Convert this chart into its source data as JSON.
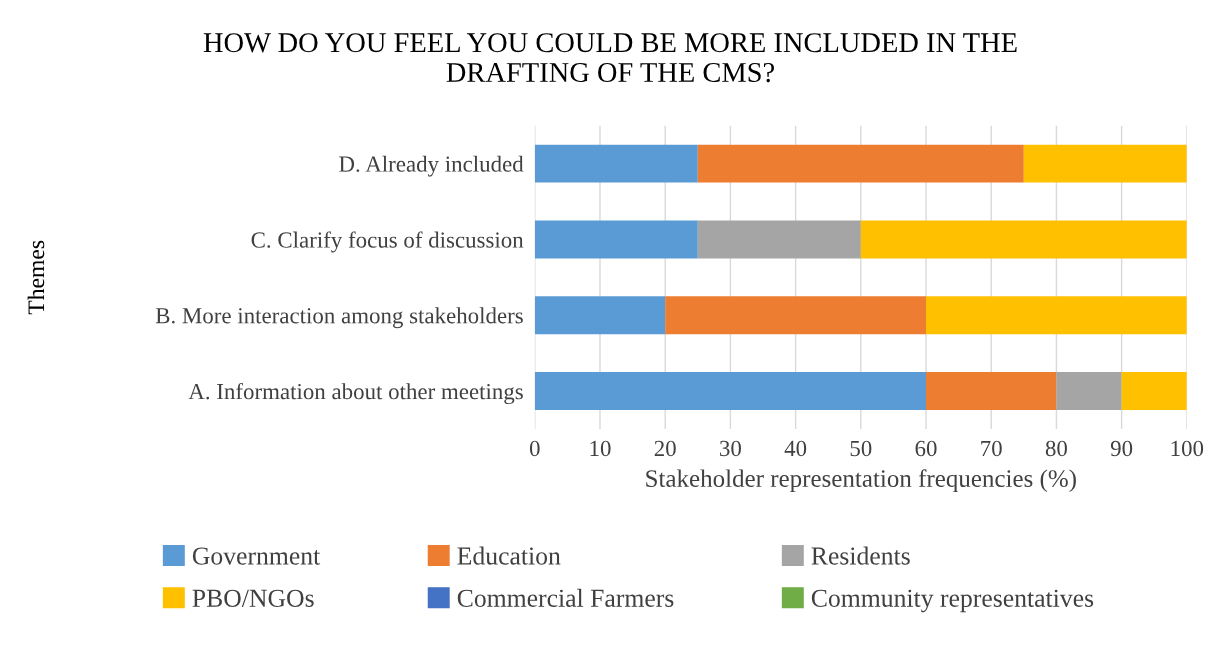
{
  "chart_data": {
    "type": "bar",
    "orientation": "horizontal",
    "stacked": true,
    "title": "HOW DO YOU FEEL YOU COULD BE MORE INCLUDED IN THE\nDRAFTING OF THE CMS?",
    "xlabel": "Stakeholder representation frequencies (%)",
    "ylabel": "Themes",
    "categories": [
      "D. Already included",
      "C. Clarify focus of discussion",
      "B. More interaction among stakeholders",
      "A. Information about other meetings"
    ],
    "series": [
      {
        "name": "Government",
        "color": "#5b9bd5",
        "values": [
          25,
          25,
          20,
          60
        ]
      },
      {
        "name": "Education",
        "color": "#ed7d31",
        "values": [
          50,
          0,
          40,
          20
        ]
      },
      {
        "name": "Residents",
        "color": "#a5a5a5",
        "values": [
          0,
          25,
          0,
          10
        ]
      },
      {
        "name": "PBO/NGOs",
        "color": "#ffc000",
        "values": [
          25,
          50,
          40,
          10
        ]
      },
      {
        "name": "Commercial Farmers",
        "color": "#4472c4",
        "values": [
          0,
          0,
          0,
          0
        ]
      },
      {
        "name": "Community representatives",
        "color": "#70ad47",
        "values": [
          0,
          0,
          0,
          0
        ]
      }
    ],
    "xlim": [
      0,
      100
    ],
    "xticks": [
      0,
      10,
      20,
      30,
      40,
      50,
      60,
      70,
      80,
      90,
      100
    ],
    "grid": "x",
    "legend": "bottom"
  }
}
